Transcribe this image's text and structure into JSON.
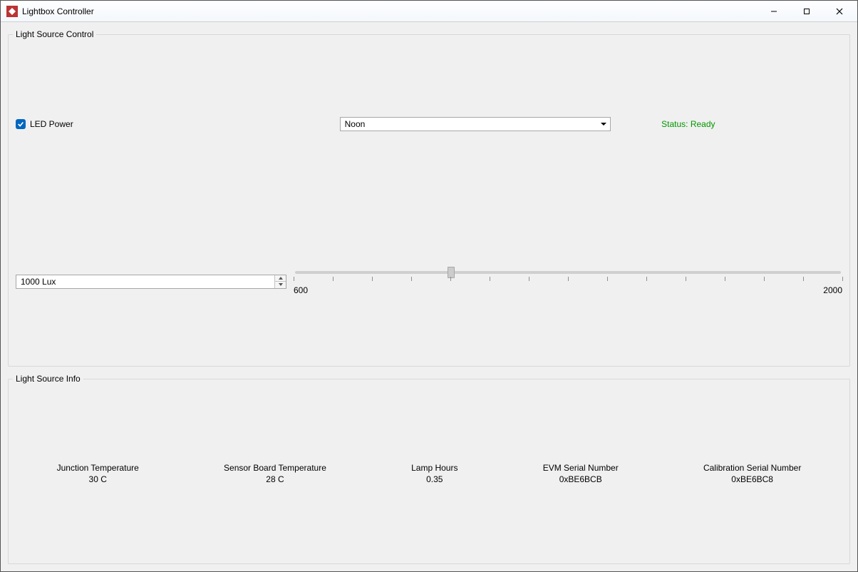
{
  "window": {
    "title": "Lightbox Controller"
  },
  "colors": {
    "status_ok": "#009600",
    "accent": "#0067c0"
  },
  "control": {
    "group_title": "Light Source Control",
    "led_power_label": "LED Power",
    "led_power_checked": true,
    "preset_selected": "Noon",
    "status_text": "Status: Ready",
    "lux_value": "1000 Lux",
    "slider": {
      "min": 600,
      "max": 2000,
      "value": 1000,
      "min_label": "600",
      "max_label": "2000",
      "tick_step": 100
    }
  },
  "info": {
    "group_title": "Light Source Info",
    "items": [
      {
        "label": "Junction Temperature",
        "value": "30 C"
      },
      {
        "label": "Sensor Board Temperature",
        "value": "28 C"
      },
      {
        "label": "Lamp Hours",
        "value": "0.35"
      },
      {
        "label": "EVM Serial Number",
        "value": "0xBE6BCB"
      },
      {
        "label": "Calibration Serial Number",
        "value": "0xBE6BC8"
      }
    ]
  }
}
